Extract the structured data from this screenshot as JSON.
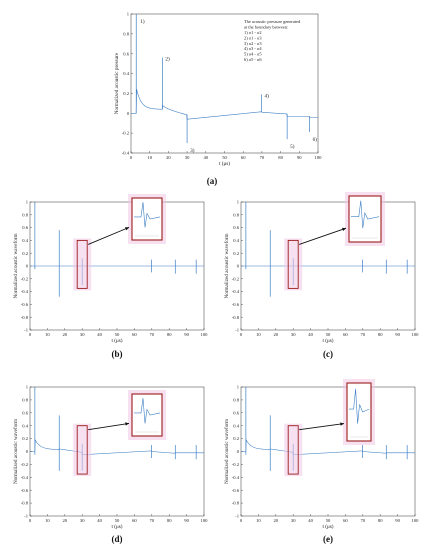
{
  "chart_data": [
    {
      "panel": "(a)",
      "type": "line",
      "xlabel": "t (μs)",
      "ylabel": "Normalized acoustic pressure",
      "xlim": [
        0,
        100
      ],
      "ylim": [
        -0.4,
        1
      ],
      "xticks": [
        "0",
        "10",
        "20",
        "30",
        "40",
        "50",
        "60",
        "70",
        "80",
        "90",
        "100"
      ],
      "yticks": [
        "-0.4",
        "-0.2",
        "0",
        "0.2",
        "0.4",
        "0.6",
        "0.8",
        "1"
      ],
      "color": "#3d7fc4",
      "events": [
        {
          "t": 2.8,
          "y": 1.0,
          "label": "1)"
        },
        {
          "t": 16.8,
          "y": 0.56,
          "label": "2)"
        },
        {
          "t": 30.0,
          "y": -0.3,
          "label": "3)"
        },
        {
          "t": 69.8,
          "y": 0.19,
          "label": "4)"
        },
        {
          "t": 83.5,
          "y": -0.26,
          "label": "5)"
        },
        {
          "t": 95.5,
          "y": -0.19,
          "label": "6)"
        }
      ],
      "legend_title": [
        "The acoustic pressure generated",
        "at the boundary between:"
      ],
      "legend_items": [
        "1) σ1 - σ2",
        "2) σ1 - σ3",
        "3) σ2 - σ3",
        "4) σ3 - σ4",
        "5) σ4 - σ5",
        "6) σ5 - σ6"
      ]
    },
    {
      "panel": "(b)",
      "type": "line",
      "xlabel": "t (μs)",
      "ylabel": "Normalized acoustic waveform",
      "xlim": [
        0,
        100
      ],
      "ylim": [
        -1,
        1
      ],
      "baseline": "flat",
      "spikes": [
        {
          "t": 2.8,
          "up": 1.0,
          "down": -0.05
        },
        {
          "t": 16.8,
          "up": 0.56,
          "down": -0.48
        },
        {
          "t": 30.0,
          "up": 0.12,
          "down": -0.3
        },
        {
          "t": 69.8,
          "up": 0.1,
          "down": -0.1
        },
        {
          "t": 83.5,
          "up": 0.1,
          "down": -0.12
        },
        {
          "t": 95.5,
          "up": 0.1,
          "down": -0.12
        }
      ]
    },
    {
      "panel": "(c)",
      "type": "line",
      "xlabel": "t (μs)",
      "ylabel": "Normalized acoustic waveform",
      "xlim": [
        0,
        100
      ],
      "ylim": [
        -1,
        1
      ],
      "baseline": "flat",
      "spikes": [
        {
          "t": 2.8,
          "up": 1.0,
          "down": -0.05
        },
        {
          "t": 16.8,
          "up": 0.56,
          "down": -0.48
        },
        {
          "t": 30.0,
          "up": 0.12,
          "down": -0.3
        },
        {
          "t": 69.8,
          "up": 0.1,
          "down": -0.1
        },
        {
          "t": 83.5,
          "up": 0.1,
          "down": -0.12
        },
        {
          "t": 95.5,
          "up": 0.1,
          "down": -0.12
        }
      ]
    },
    {
      "panel": "(d)",
      "type": "line",
      "xlabel": "t (μs)",
      "ylabel": "Normalized acoustic waveform",
      "xlim": [
        0,
        100
      ],
      "ylim": [
        -1,
        1
      ],
      "baseline": "decay",
      "spikes": [
        {
          "t": 2.8,
          "up": 1.0,
          "down": -0.05
        },
        {
          "t": 16.8,
          "up": 0.56,
          "down": -0.3
        },
        {
          "t": 30.0,
          "up": 0.12,
          "down": -0.3
        },
        {
          "t": 69.8,
          "up": 0.1,
          "down": -0.1
        },
        {
          "t": 83.5,
          "up": 0.1,
          "down": -0.12
        },
        {
          "t": 95.5,
          "up": 0.1,
          "down": -0.12
        }
      ]
    },
    {
      "panel": "(e)",
      "type": "line",
      "xlabel": "t (μs)",
      "ylabel": "Normalized acoustic waveform",
      "xlim": [
        0,
        100
      ],
      "ylim": [
        -1,
        1
      ],
      "baseline": "decay",
      "spikes": [
        {
          "t": 2.8,
          "up": 1.0,
          "down": -0.05
        },
        {
          "t": 16.8,
          "up": 0.56,
          "down": -0.3
        },
        {
          "t": 30.0,
          "up": 0.12,
          "down": -0.3
        },
        {
          "t": 69.8,
          "up": 0.1,
          "down": -0.1
        },
        {
          "t": 83.5,
          "up": 0.1,
          "down": -0.12
        },
        {
          "t": 95.5,
          "up": 0.1,
          "down": -0.12
        }
      ]
    }
  ],
  "small_xticks": [
    "0",
    "10",
    "20",
    "30",
    "40",
    "50",
    "60",
    "70",
    "80",
    "90",
    "100"
  ],
  "small_yticks": [
    "-1",
    "-0.8",
    "-0.6",
    "-0.4",
    "-0.2",
    "0",
    "0.2",
    "0.4",
    "0.6",
    "0.8",
    "1"
  ],
  "colors": {
    "line": "#3d7fc4",
    "highlight": "#f0c8e6",
    "frame": "#9b1b1b"
  }
}
